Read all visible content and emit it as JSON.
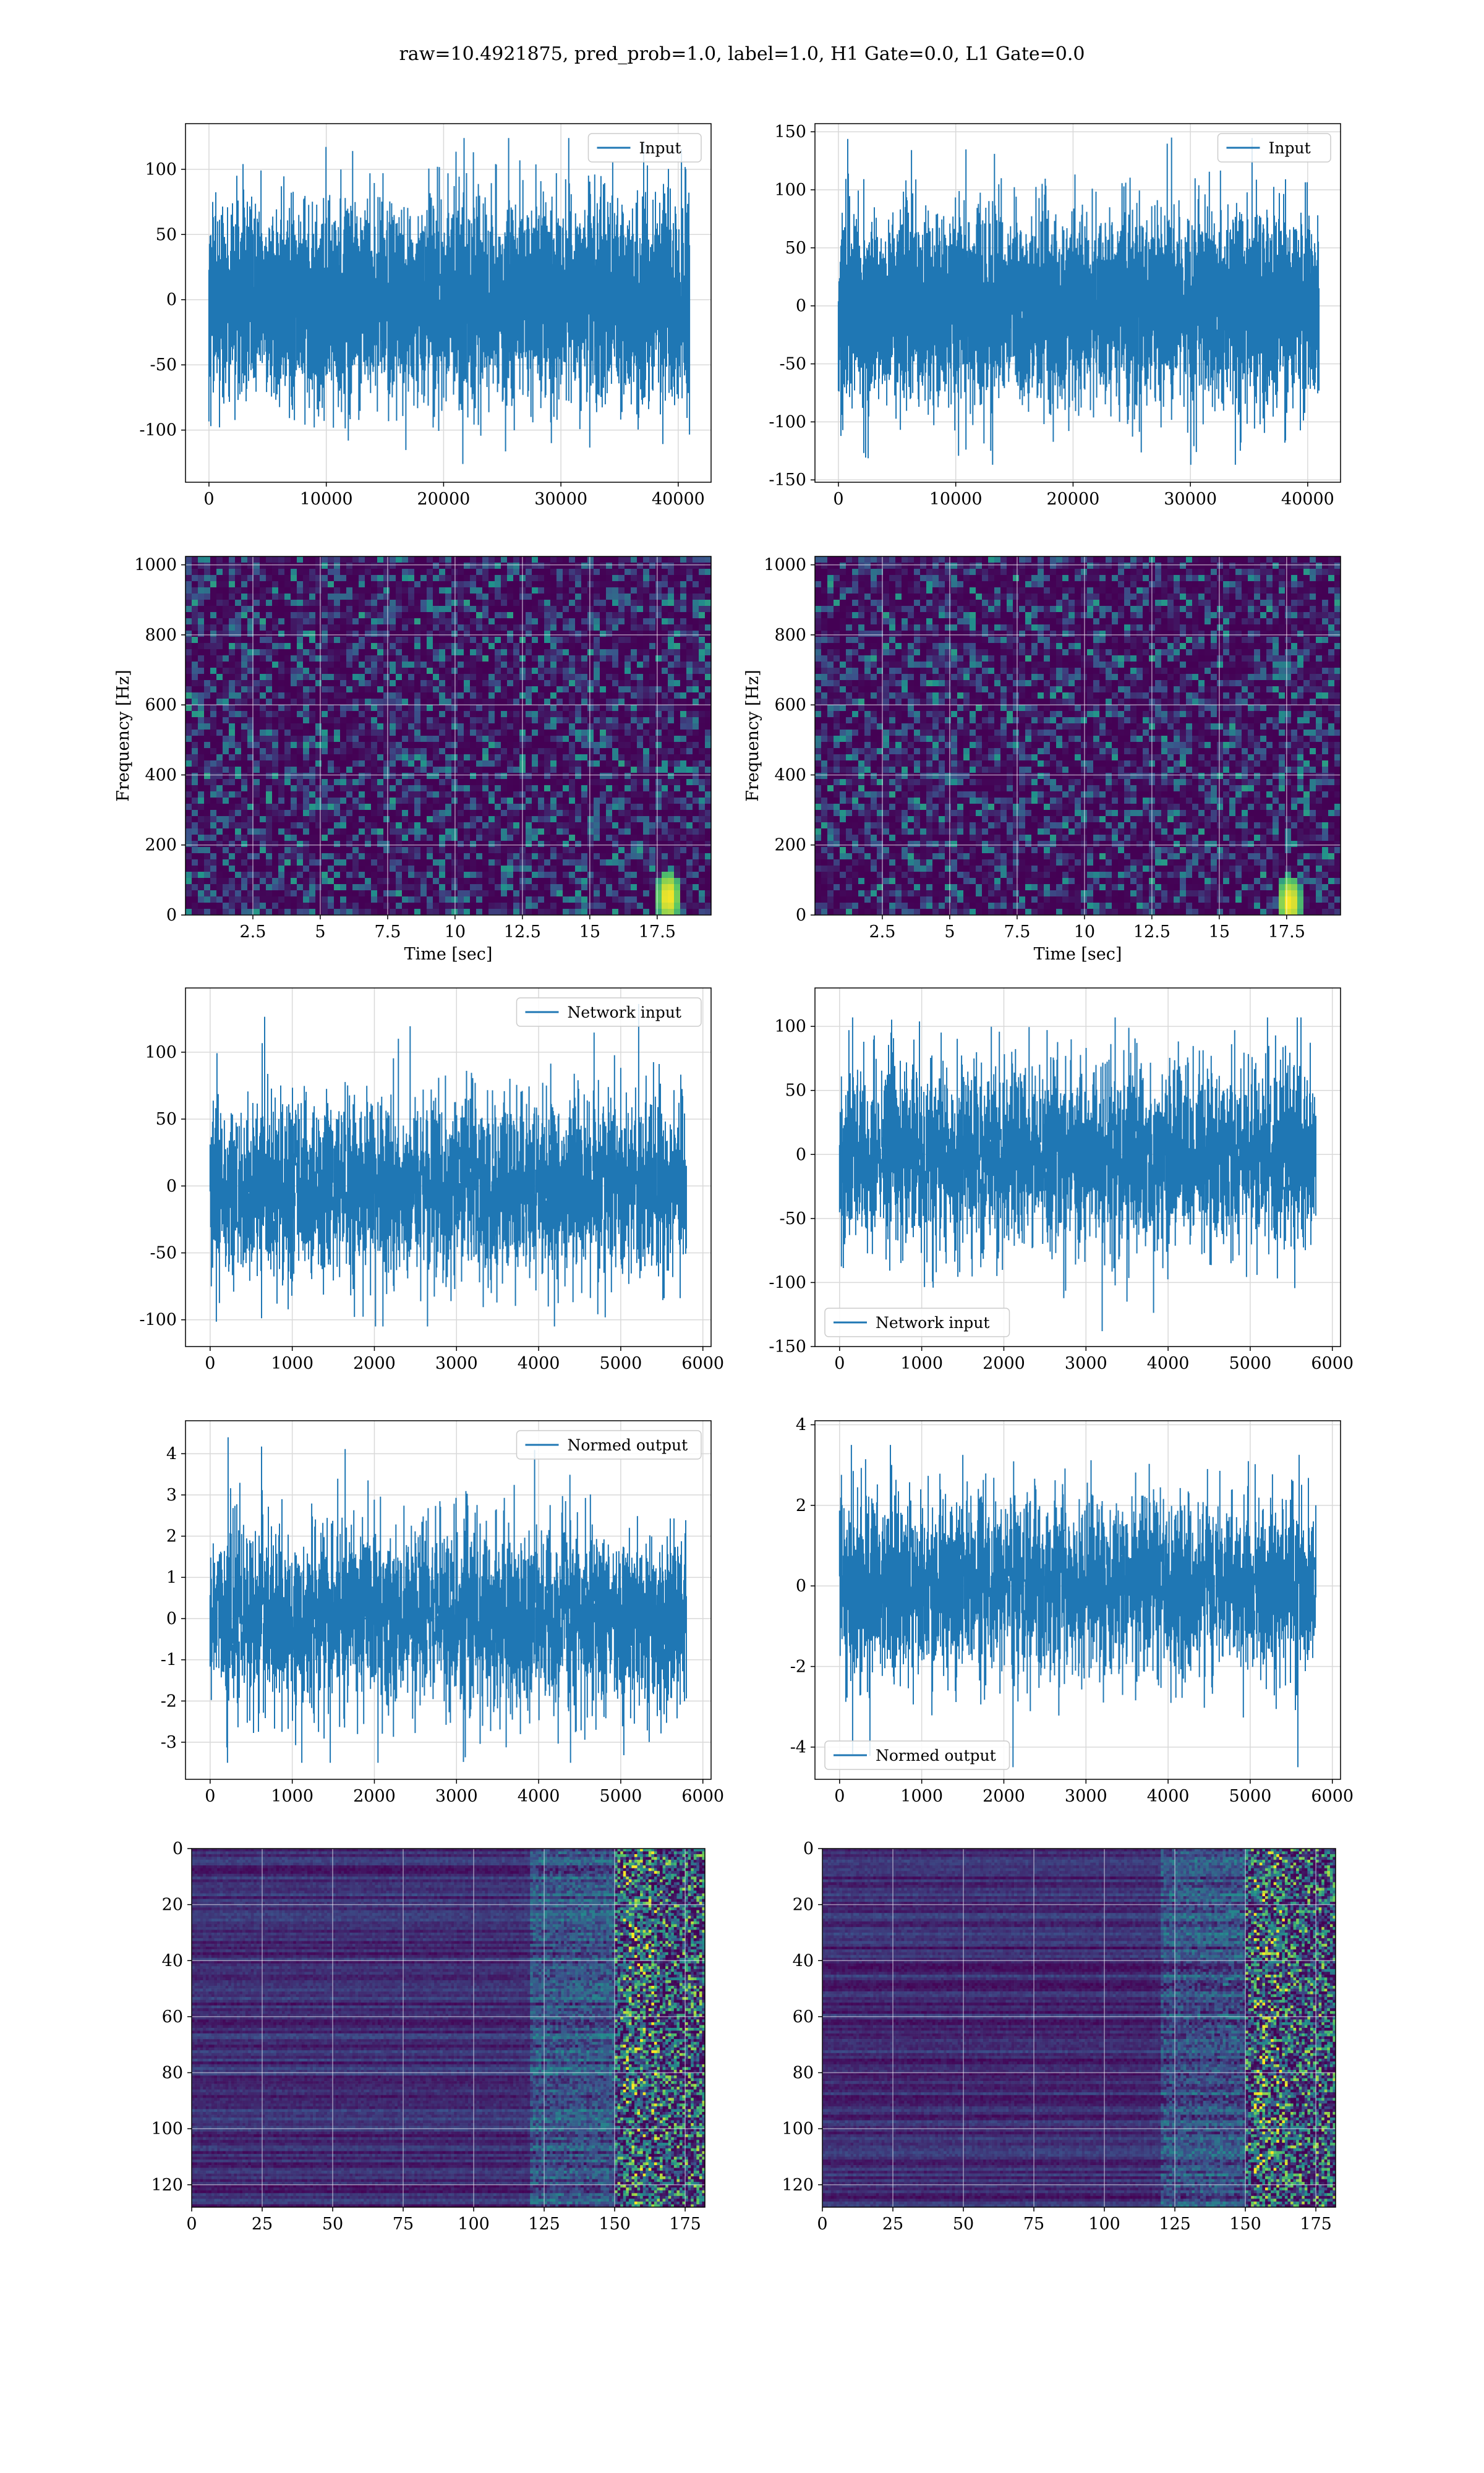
{
  "figure": {
    "title": "raw=10.4921875, pred_prob=1.0, label=1.0, H1 Gate=0.0, L1 Gate=0.0"
  },
  "chart_data": [
    {
      "id": "input-h1",
      "type": "line",
      "legend": "Input",
      "legend_loc": "upper right",
      "xlim": [
        -2000,
        42800
      ],
      "ylim": [
        -140,
        135
      ],
      "xticks": [
        0,
        10000,
        20000,
        30000,
        40000
      ],
      "yticks": [
        -100,
        -50,
        0,
        50,
        100
      ],
      "series": [
        {
          "name": "Input",
          "n": 40960,
          "sigma": 31,
          "max": 124,
          "min": -126,
          "color": "#1f77b4"
        }
      ],
      "grid": true
    },
    {
      "id": "input-l1",
      "type": "line",
      "legend": "Input",
      "legend_loc": "upper right",
      "xlim": [
        -2000,
        42800
      ],
      "ylim": [
        -152,
        157
      ],
      "xticks": [
        0,
        10000,
        20000,
        30000,
        40000
      ],
      "yticks": [
        -150,
        -100,
        -50,
        0,
        50,
        100,
        150
      ],
      "series": [
        {
          "name": "Input",
          "n": 40960,
          "sigma": 34,
          "max": 145,
          "min": -137,
          "color": "#1f77b4"
        }
      ],
      "grid": true
    },
    {
      "id": "spec-h1",
      "type": "heatmap",
      "xlabel": "Time [sec]",
      "ylabel": "Frequency [Hz]",
      "xlim": [
        0,
        19.5
      ],
      "ylim": [
        0,
        1024
      ],
      "xticks": [
        2.5,
        5.0,
        7.5,
        10.0,
        12.5,
        15.0,
        17.5
      ],
      "yticks": [
        0,
        200,
        400,
        600,
        800,
        1000
      ],
      "colormap": "viridis",
      "hotspot": {
        "time": 17.8,
        "freq": 60
      },
      "grid": true
    },
    {
      "id": "spec-l1",
      "type": "heatmap",
      "xlabel": "Time [sec]",
      "ylabel": "Frequency [Hz]",
      "xlim": [
        0,
        19.5
      ],
      "ylim": [
        0,
        1024
      ],
      "xticks": [
        2.5,
        5.0,
        7.5,
        10.0,
        12.5,
        15.0,
        17.5
      ],
      "yticks": [
        0,
        200,
        400,
        600,
        800,
        1000
      ],
      "colormap": "viridis",
      "hotspot": {
        "time": 17.5,
        "freq": 45
      },
      "grid": true
    },
    {
      "id": "net-h1",
      "type": "line",
      "legend": "Network input",
      "legend_loc": "upper right",
      "xlim": [
        -300,
        6100
      ],
      "ylim": [
        -120,
        148
      ],
      "xticks": [
        0,
        1000,
        2000,
        3000,
        4000,
        5000,
        6000
      ],
      "yticks": [
        -100,
        -50,
        0,
        50,
        100
      ],
      "series": [
        {
          "name": "Network input",
          "n": 5800,
          "sigma": 30,
          "max": 136,
          "min": -105,
          "color": "#1f77b4"
        }
      ],
      "grid": true
    },
    {
      "id": "net-l1",
      "type": "line",
      "legend": "Network input",
      "legend_loc": "lower left",
      "xlim": [
        -300,
        6100
      ],
      "ylim": [
        -150,
        130
      ],
      "xticks": [
        0,
        1000,
        2000,
        3000,
        4000,
        5000,
        6000
      ],
      "yticks": [
        -150,
        -100,
        -50,
        0,
        50,
        100
      ],
      "series": [
        {
          "name": "Network input",
          "n": 5800,
          "sigma": 31,
          "max": 107,
          "min": -138,
          "color": "#1f77b4"
        }
      ],
      "grid": true
    },
    {
      "id": "norm-h1",
      "type": "line",
      "legend": "Normed output",
      "legend_loc": "upper right",
      "xlim": [
        -300,
        6100
      ],
      "ylim": [
        -3.9,
        4.8
      ],
      "xticks": [
        0,
        1000,
        2000,
        3000,
        4000,
        5000,
        6000
      ],
      "yticks": [
        -3,
        -2,
        -1,
        0,
        1,
        2,
        3,
        4
      ],
      "series": [
        {
          "name": "Normed output",
          "n": 5800,
          "sigma": 0.95,
          "max": 4.4,
          "min": -3.5,
          "color": "#1f77b4"
        }
      ],
      "grid": true
    },
    {
      "id": "norm-l1",
      "type": "line",
      "legend": "Normed output",
      "legend_loc": "lower left",
      "xlim": [
        -300,
        6100
      ],
      "ylim": [
        -4.8,
        4.1
      ],
      "xticks": [
        0,
        1000,
        2000,
        3000,
        4000,
        5000,
        6000
      ],
      "yticks": [
        -4,
        -2,
        0,
        2,
        4
      ],
      "series": [
        {
          "name": "Normed output",
          "n": 5800,
          "sigma": 0.95,
          "max": 3.5,
          "min": -4.5,
          "color": "#1f77b4"
        }
      ],
      "grid": true
    },
    {
      "id": "feat-h1",
      "type": "heatmap",
      "xlim": [
        0,
        182
      ],
      "ylim": [
        128,
        0
      ],
      "xticks": [
        0,
        25,
        50,
        75,
        100,
        125,
        150,
        175
      ],
      "yticks": [
        0,
        20,
        40,
        60,
        80,
        100,
        120
      ],
      "colormap": "viridis",
      "grid": true
    },
    {
      "id": "feat-l1",
      "type": "heatmap",
      "xlim": [
        0,
        182
      ],
      "ylim": [
        128,
        0
      ],
      "xticks": [
        0,
        25,
        50,
        75,
        100,
        125,
        150,
        175
      ],
      "yticks": [
        0,
        20,
        40,
        60,
        80,
        100,
        120
      ],
      "colormap": "viridis",
      "grid": true
    }
  ]
}
